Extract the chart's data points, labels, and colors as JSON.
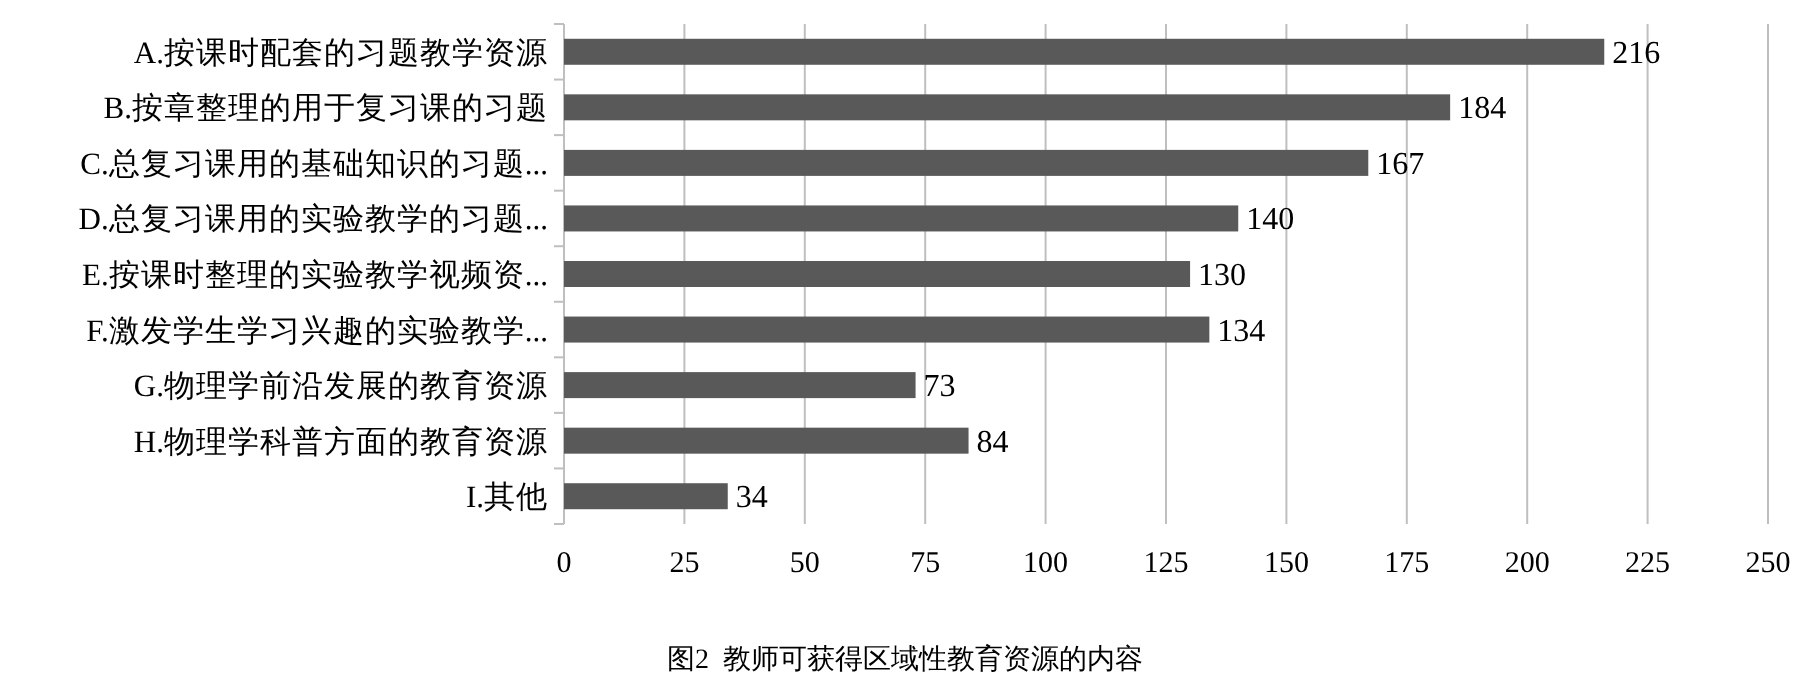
{
  "chart_data": {
    "type": "bar",
    "orientation": "horizontal",
    "title": "图2  教师可获得区域性教育资源的内容",
    "categories": [
      "A.按课时配套的习题教学资源",
      "B.按章整理的用于复习课的习题",
      "C.总复习课用的基础知识的习题...",
      "D.总复习课用的实验教学的习题...",
      "E.按课时整理的实验教学视频资...",
      "F.激发学生学习兴趣的实验教学...",
      "G.物理学前沿发展的教育资源",
      "H.物理学科普方面的教育资源",
      "I.其他"
    ],
    "values": [
      216,
      184,
      167,
      140,
      130,
      134,
      73,
      84,
      34
    ],
    "color": "#595959",
    "xlim": [
      0,
      250
    ],
    "xticks": [
      0,
      25,
      50,
      75,
      100,
      125,
      150,
      175,
      200,
      225,
      250
    ],
    "grid": "x",
    "data_labels": true
  }
}
